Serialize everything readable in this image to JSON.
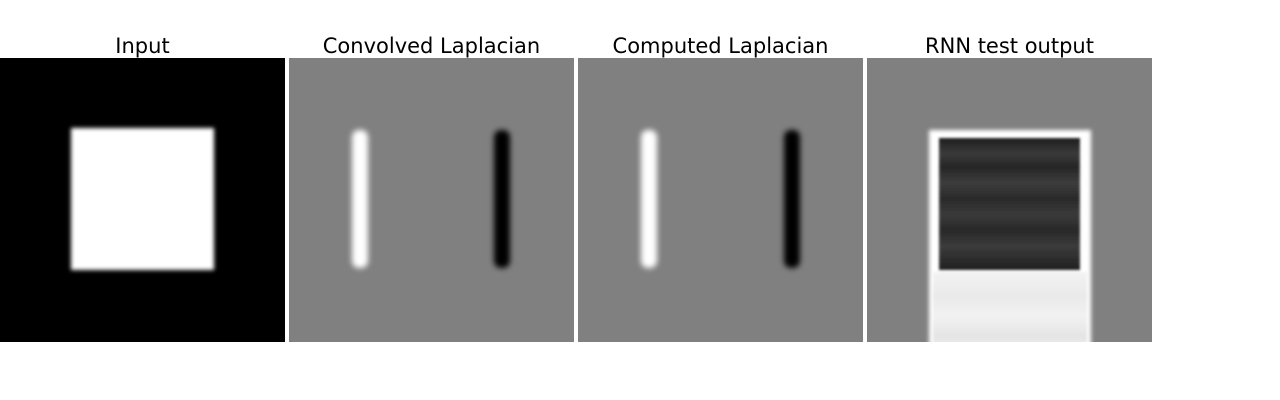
{
  "panels": [
    {
      "title": "Input",
      "name": "input",
      "background": "#000000"
    },
    {
      "title": "Convolved Laplacian",
      "name": "convolved-laplacian",
      "background": "#808080"
    },
    {
      "title": "Computed Laplacian",
      "name": "computed-laplacian",
      "background": "#808080"
    },
    {
      "title": "RNN test output",
      "name": "rnn-test-output",
      "background": "#808080"
    }
  ],
  "colors": {
    "white": "#ffffff",
    "black": "#000000",
    "gray": "#808080",
    "rnn_dark": "#2f2f2f",
    "rnn_light": "#e6e6e6"
  }
}
